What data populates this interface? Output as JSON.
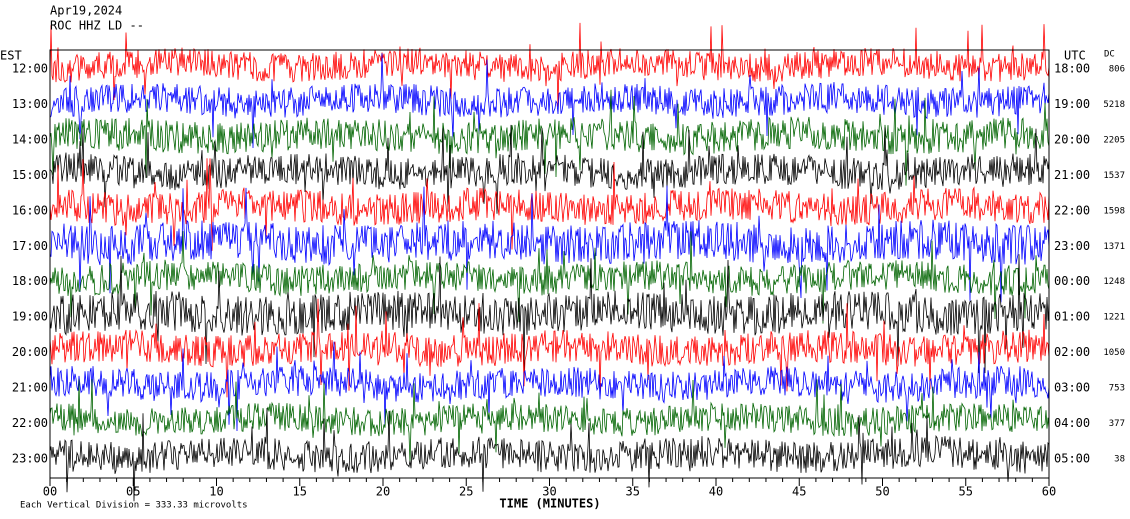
{
  "header": {
    "lines": [
      "Apr19,2024",
      "ROC HHZ LD --"
    ]
  },
  "left_axis": {
    "title": "EST",
    "labels": [
      "12:00",
      "13:00",
      "14:00",
      "15:00",
      "16:00",
      "17:00",
      "18:00",
      "19:00",
      "20:00",
      "21:00",
      "22:00",
      "23:00"
    ]
  },
  "right_axis": {
    "title": "UTC",
    "labels": [
      "18:00",
      "19:00",
      "20:00",
      "21:00",
      "22:00",
      "23:00",
      "00:00",
      "01:00",
      "02:00",
      "03:00",
      "04:00",
      "05:00"
    ]
  },
  "dc": {
    "title": "DC",
    "values": [
      806,
      5218,
      2205,
      1537,
      1598,
      1371,
      1248,
      1221,
      1050,
      753,
      377,
      38
    ]
  },
  "x_axis": {
    "ticks": [
      "00",
      "05",
      "10",
      "15",
      "20",
      "25",
      "30",
      "35",
      "40",
      "45",
      "50",
      "55",
      "60"
    ],
    "label": "TIME (MINUTES)"
  },
  "footer": "Each Vertical Division =  333.33 microvolts"
}
